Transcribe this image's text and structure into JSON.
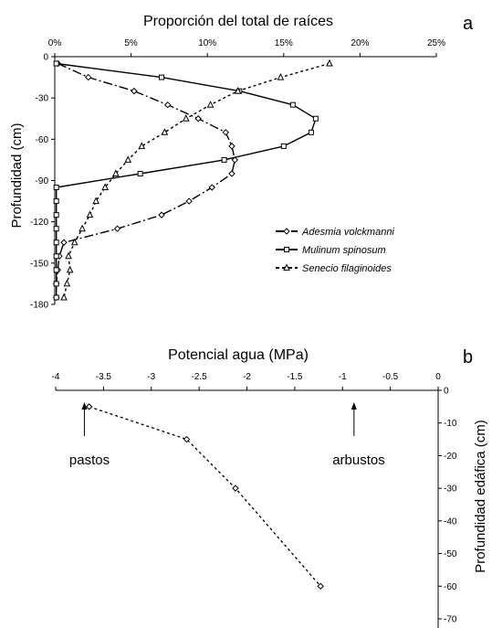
{
  "chart_data": [
    {
      "panel_label": "a",
      "type": "line",
      "title": "Proporción del total de raíces",
      "xlabel": "",
      "ylabel": "Profundidad (cm)",
      "x_axis_position": "top",
      "xlim": [
        0,
        25
      ],
      "ylim": [
        -180,
        0
      ],
      "x_ticks": [
        "0%",
        "5%",
        "10%",
        "15%",
        "20%",
        "25%"
      ],
      "y_ticks": [
        "0",
        "-30",
        "-60",
        "-90",
        "-120",
        "-150",
        "-180"
      ],
      "grid": false,
      "legend_position": "lower-right",
      "series": [
        {
          "name": "Adesmia volckmanni",
          "marker": "diamond",
          "line_style": "dash-dot",
          "x": [
            0.2,
            2.2,
            5.2,
            7.4,
            9.4,
            11.2,
            11.6,
            11.8,
            11.6,
            10.3,
            8.8,
            7.0,
            4.1,
            0.6,
            0.3,
            0.2,
            0.1,
            0.1
          ],
          "y": [
            -5,
            -15,
            -25,
            -35,
            -45,
            -55,
            -65,
            -75,
            -85,
            -95,
            -105,
            -115,
            -125,
            -135,
            -145,
            -155,
            -165,
            -175
          ]
        },
        {
          "name": "Mulinum spinosum",
          "marker": "square",
          "line_style": "solid",
          "x": [
            0.1,
            7.0,
            12.1,
            15.6,
            17.1,
            16.8,
            15.0,
            11.1,
            5.6,
            0.1,
            0.1,
            0.1,
            0.1,
            0.1,
            0.1,
            0.1,
            0.1,
            0.1
          ],
          "y": [
            -5,
            -15,
            -25,
            -35,
            -45,
            -55,
            -65,
            -75,
            -85,
            -95,
            -105,
            -115,
            -125,
            -135,
            -145,
            -155,
            -165,
            -175
          ]
        },
        {
          "name": "Senecio filaginoides",
          "marker": "triangle",
          "line_style": "dotted",
          "x": [
            18.0,
            14.8,
            12.0,
            10.2,
            8.6,
            7.2,
            5.7,
            4.8,
            4.0,
            3.3,
            2.7,
            2.3,
            1.8,
            1.3,
            0.9,
            1.0,
            0.8,
            0.6
          ],
          "y": [
            -5,
            -15,
            -25,
            -35,
            -45,
            -55,
            -65,
            -75,
            -85,
            -95,
            -105,
            -115,
            -125,
            -135,
            -145,
            -155,
            -165,
            -175
          ]
        }
      ]
    },
    {
      "panel_label": "b",
      "type": "line",
      "title": "Potencial agua (MPa)",
      "xlabel": "",
      "ylabel": "Profundidad edáfica (cm)",
      "x_axis_position": "top",
      "y_axis_position": "right",
      "xlim": [
        -4,
        0
      ],
      "ylim": [
        -70,
        0
      ],
      "x_ticks": [
        "-4",
        "-3.5",
        "-3",
        "-2.5",
        "-2",
        "-1.5",
        "-1",
        "-0.5",
        "0"
      ],
      "y_ticks": [
        "0",
        "-10",
        "-20",
        "-30",
        "-40",
        "-50",
        "-60",
        "-70"
      ],
      "grid": false,
      "series": [
        {
          "marker": "diamond",
          "line_style": "dotted",
          "x": [
            -3.65,
            -2.63,
            -2.12,
            -1.23
          ],
          "y": [
            -5,
            -15,
            -30,
            -60
          ]
        }
      ],
      "annotations": [
        {
          "text": "pastos",
          "x": -3.7
        },
        {
          "text": "arbustos",
          "x": -0.88
        }
      ]
    }
  ]
}
